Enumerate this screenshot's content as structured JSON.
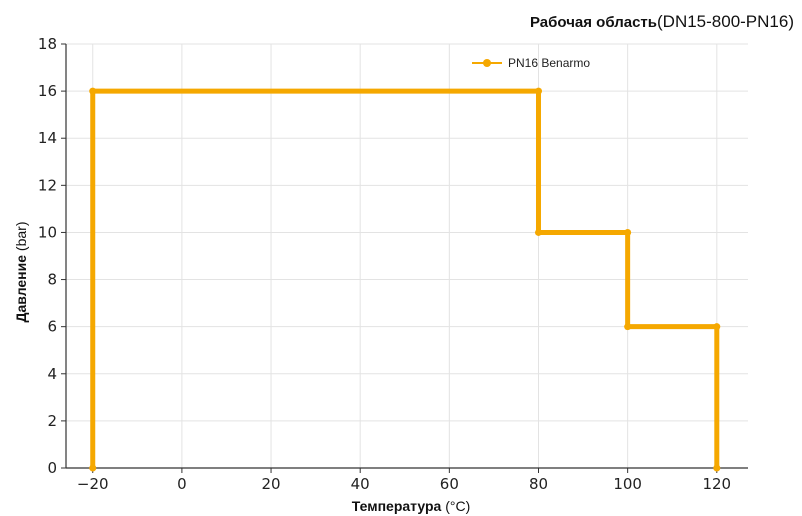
{
  "chart_data": {
    "type": "line",
    "title_bold": "Рабочая область",
    "title_rest": "(DN15-800-PN16)",
    "xlabel_bold": "Температура",
    "xlabel_unit": " (°C)",
    "ylabel_bold": "Давление",
    "ylabel_unit": " (bar)",
    "xlim": [
      -26,
      127
    ],
    "ylim": [
      0,
      18
    ],
    "xticks": [
      -20,
      0,
      20,
      40,
      60,
      80,
      100,
      120
    ],
    "xtick_labels": [
      "−20",
      "0",
      "20",
      "40",
      "60",
      "80",
      "100",
      "120"
    ],
    "yticks": [
      0,
      2,
      4,
      6,
      8,
      10,
      12,
      14,
      16,
      18
    ],
    "ytick_labels": [
      "0",
      "2",
      "4",
      "6",
      "8",
      "10",
      "12",
      "14",
      "16",
      "18"
    ],
    "grid": true,
    "legend_position": "top-right",
    "series": [
      {
        "name": "PN16 Benarmo",
        "color": "#f5a800",
        "marker": "circle",
        "x": [
          -20,
          -20,
          80,
          80,
          100,
          100,
          120,
          120
        ],
        "y": [
          0,
          16,
          16,
          10,
          10,
          6,
          6,
          0
        ]
      }
    ]
  }
}
